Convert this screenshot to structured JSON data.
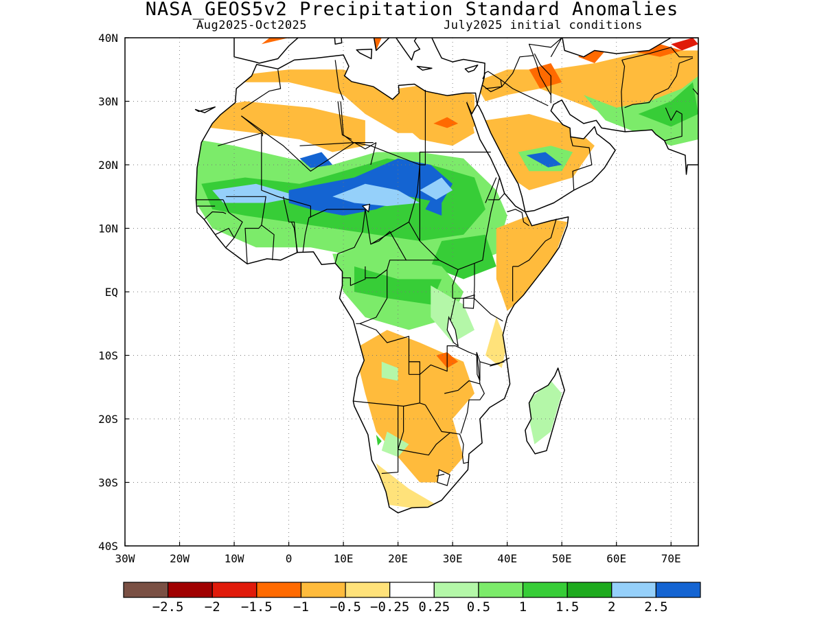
{
  "title": "NASA_GEOS5v2 Precipitation Standard Anomalies",
  "subtitle_left": "Aug2025-Oct2025",
  "subtitle_right": "July2025 initial conditions",
  "map": {
    "lon_range": [
      -30,
      75
    ],
    "lat_range": [
      -40,
      40
    ],
    "lat_ticks": [
      {
        "value": 40,
        "label": "40N"
      },
      {
        "value": 30,
        "label": "30N"
      },
      {
        "value": 20,
        "label": "20N"
      },
      {
        "value": 10,
        "label": "10N"
      },
      {
        "value": 0,
        "label": "EQ"
      },
      {
        "value": -10,
        "label": "10S"
      },
      {
        "value": -20,
        "label": "20S"
      },
      {
        "value": -30,
        "label": "30S"
      },
      {
        "value": -40,
        "label": "40S"
      }
    ],
    "lon_ticks": [
      {
        "value": -30,
        "label": "30W"
      },
      {
        "value": -20,
        "label": "20W"
      },
      {
        "value": -10,
        "label": "10W"
      },
      {
        "value": 0,
        "label": "0"
      },
      {
        "value": 10,
        "label": "10E"
      },
      {
        "value": 20,
        "label": "20E"
      },
      {
        "value": 30,
        "label": "30E"
      },
      {
        "value": 40,
        "label": "40E"
      },
      {
        "value": 50,
        "label": "50E"
      },
      {
        "value": 60,
        "label": "60E"
      },
      {
        "value": 70,
        "label": "70E"
      }
    ],
    "grid": "dotted"
  },
  "colorbar": {
    "colors": [
      "#7a5044",
      "#a00000",
      "#e01a0a",
      "#ff6a00",
      "#ffbb3c",
      "#ffe27a",
      "#ffffff",
      "#b4f7a8",
      "#7ceb6a",
      "#37cd37",
      "#1eaa1e",
      "#95d0fa",
      "#1464d2"
    ],
    "labels": [
      "-2.5",
      "-2",
      "-1.5",
      "-1",
      "-0.5",
      "-0.25",
      "0.25",
      "0.5",
      "1",
      "1.5",
      "2",
      "2.5"
    ]
  }
}
